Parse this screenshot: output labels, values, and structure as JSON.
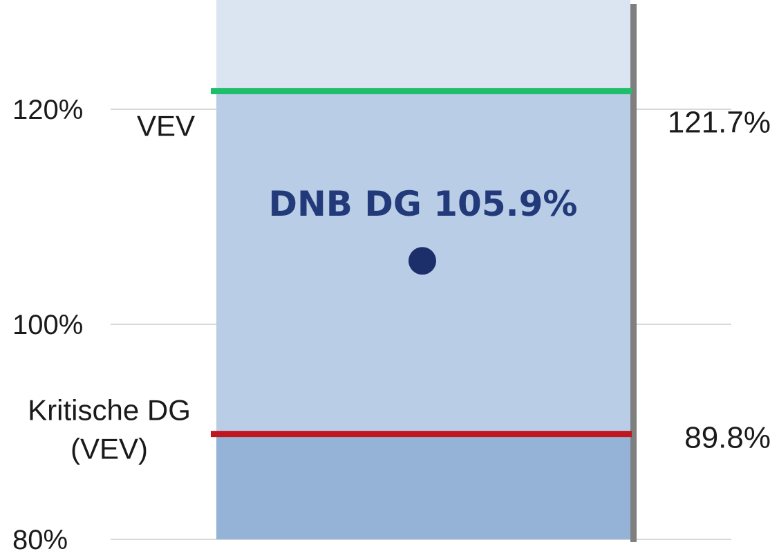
{
  "colors": {
    "top_band": "#dbe4f1",
    "middle_band": "#b9cde6",
    "bottom_band": "#95b3d7",
    "upper_line": "#1fbe6b",
    "lower_line": "#c0161e",
    "point": "#1c2f6b",
    "center_text": "#233a7a",
    "grid": "#d9d9d9",
    "shadow": "#7f7f7f"
  },
  "chart_data": {
    "type": "scatter",
    "y_ticks": [
      {
        "value": 120,
        "label": "120%"
      },
      {
        "value": 100,
        "label": "100%"
      },
      {
        "value": 80,
        "label": "80%"
      }
    ],
    "grid": true,
    "bands": [
      {
        "from": 121.7,
        "to": 124,
        "color": "top_band"
      },
      {
        "from": 89.8,
        "to": 121.7,
        "color": "middle_band"
      },
      {
        "from": 80,
        "to": 89.8,
        "color": "bottom_band"
      }
    ],
    "lines": [
      {
        "value": 121.7,
        "left_label": "VEV",
        "right_label": "121.7%",
        "color": "upper_line"
      },
      {
        "value": 89.8,
        "left_label": "Kritische DG\n(VEV)",
        "right_label": "89.8%",
        "color": "lower_line"
      }
    ],
    "point": {
      "value": 105.9,
      "label": "DNB DG 105.9%"
    }
  }
}
